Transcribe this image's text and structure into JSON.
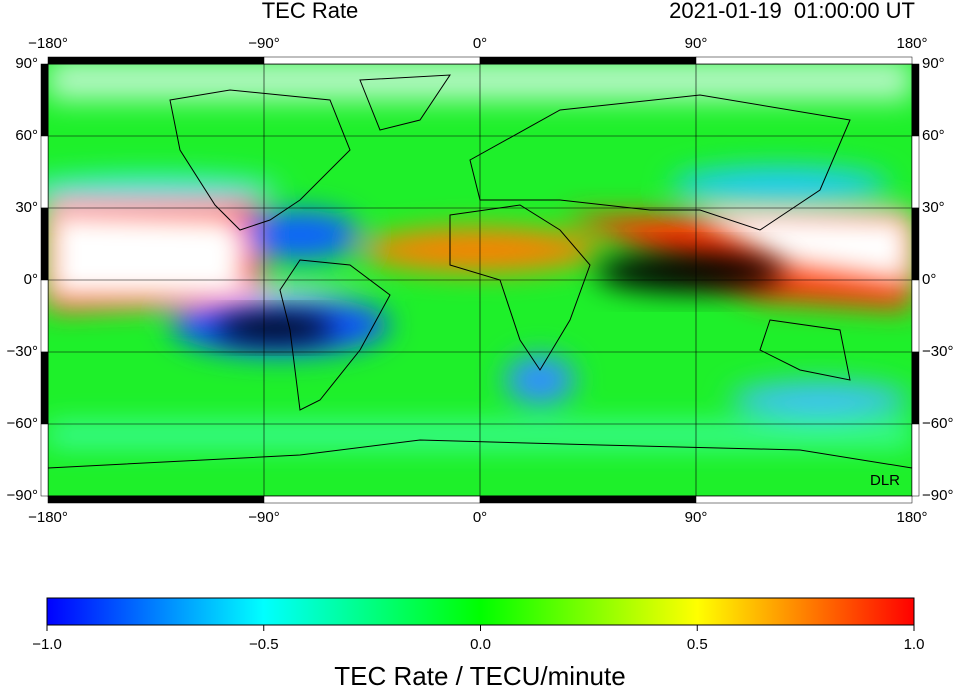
{
  "header": {
    "title": "TEC Rate",
    "timestamp": "2021-01-19  01:00:00 UT"
  },
  "map": {
    "lon_ticks": [
      {
        "value": -180,
        "label": "−180°"
      },
      {
        "value": -90,
        "label": "−90°"
      },
      {
        "value": 0,
        "label": "0°"
      },
      {
        "value": 90,
        "label": "90°"
      },
      {
        "value": 180,
        "label": "180°"
      }
    ],
    "lat_ticks": [
      {
        "value": 90,
        "label": "90°"
      },
      {
        "value": 60,
        "label": "60°"
      },
      {
        "value": 30,
        "label": "30°"
      },
      {
        "value": 0,
        "label": "0°"
      },
      {
        "value": -30,
        "label": "−30°"
      },
      {
        "value": -60,
        "label": "−60°"
      },
      {
        "value": -90,
        "label": "−90°"
      }
    ],
    "credit": "DLR"
  },
  "colorbar": {
    "label": "TEC Rate / TECU/minute",
    "ticks": [
      {
        "value": -1,
        "label": "−1.0"
      },
      {
        "value": -0.5,
        "label": "−0.5"
      },
      {
        "value": 0,
        "label": "0.0"
      },
      {
        "value": 0.5,
        "label": "0.5"
      },
      {
        "value": 1,
        "label": "1.0"
      }
    ]
  }
}
